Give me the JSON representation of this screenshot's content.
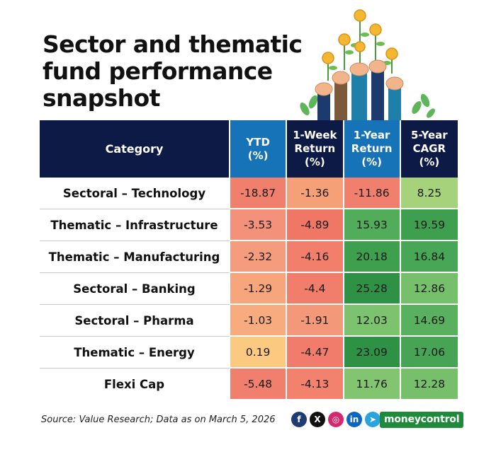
{
  "title": "Sector and thematic fund performance snapshot",
  "chart_data": {
    "type": "table",
    "title": "Sector and thematic fund performance snapshot",
    "columns": [
      "Category",
      "YTD (%)",
      "1-Week Return (%)",
      "1-Year Return (%)",
      "5-Year CAGR (%)"
    ],
    "rows": [
      {
        "category": "Sectoral – Technology",
        "ytd": "-18.87",
        "week1": "-1.36",
        "year1": "-11.86",
        "cagr5": "8.25",
        "colors": [
          "#f07f6d",
          "#f6a078",
          "#f07f6d",
          "#a6d27c"
        ]
      },
      {
        "category": "Thematic – Infrastructure",
        "ytd": "-3.53",
        "week1": "-4.89",
        "year1": "15.93",
        "cagr5": "19.59",
        "colors": [
          "#f3917a",
          "#f07666",
          "#52ad5a",
          "#3ea04e"
        ]
      },
      {
        "category": "Thematic – Manufacturing",
        "ytd": "-2.32",
        "week1": "-4.16",
        "year1": "20.18",
        "cagr5": "16.84",
        "colors": [
          "#f59c7e",
          "#f17f6c",
          "#3ea04e",
          "#48a756"
        ]
      },
      {
        "category": "Sectoral – Banking",
        "ytd": "-1.29",
        "week1": "-4.4",
        "year1": "25.28",
        "cagr5": "12.86",
        "colors": [
          "#f6a57c",
          "#f17d6b",
          "#2f9145",
          "#76bf6b"
        ]
      },
      {
        "category": "Sectoral – Pharma",
        "ytd": "-1.03",
        "week1": "-1.91",
        "year1": "12.03",
        "cagr5": "14.69",
        "colors": [
          "#f7ab7e",
          "#f4987a",
          "#7dc26e",
          "#59b05e"
        ]
      },
      {
        "category": "Thematic – Energy",
        "ytd": "0.19",
        "week1": "-4.47",
        "year1": "23.09",
        "cagr5": "17.06",
        "colors": [
          "#fbc97f",
          "#f17c6b",
          "#2f9145",
          "#46a454"
        ]
      },
      {
        "category": "Flexi Cap",
        "ytd": "-5.48",
        "week1": "-4.13",
        "year1": "11.76",
        "cagr5": "12.28",
        "colors": [
          "#f07f6d",
          "#f2816d",
          "#82c470",
          "#77bf6b"
        ]
      }
    ]
  },
  "source": "Source: Value Research; Data as on March 5, 2026",
  "footer": {
    "brand": "moneycontrol",
    "socials": [
      {
        "icon": "facebook-icon",
        "glyph": "f",
        "color": "#1f3b73"
      },
      {
        "icon": "x-icon",
        "glyph": "X",
        "color": "#111111"
      },
      {
        "icon": "instagram-icon",
        "glyph": "◎",
        "color": "#d6286f"
      },
      {
        "icon": "linkedin-icon",
        "glyph": "in",
        "color": "#0a66c2"
      },
      {
        "icon": "telegram-icon",
        "glyph": "➤",
        "color": "#2aa3df"
      }
    ]
  }
}
